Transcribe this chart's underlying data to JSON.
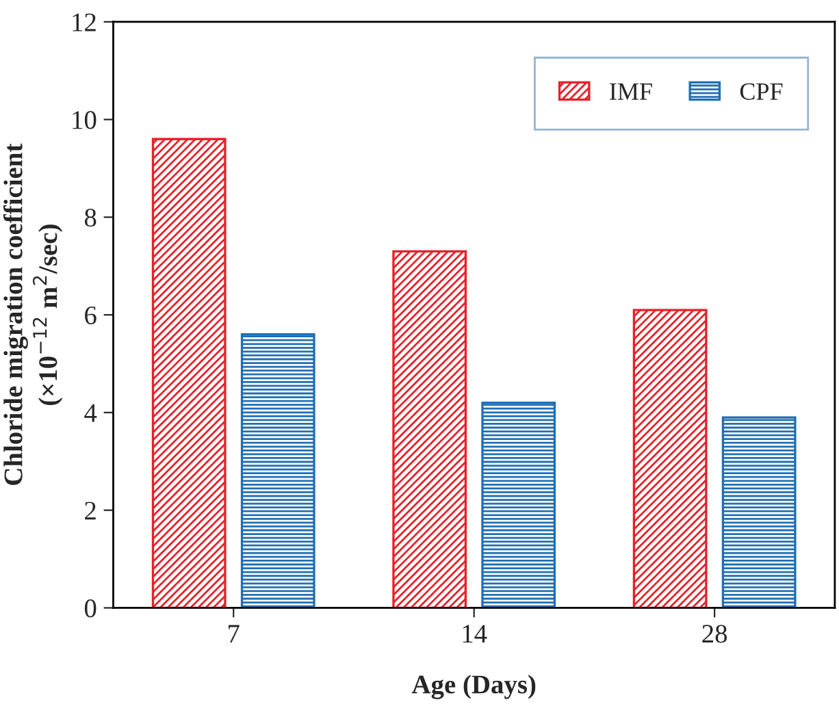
{
  "chart_data": {
    "type": "bar",
    "xlabel": "Age (Days)",
    "ylabel": "Chloride migration coefficient\n(×10$^{−12}$ m$^{2}$/sec)",
    "categories": [
      "7",
      "14",
      "28"
    ],
    "series": [
      {
        "name": "IMF",
        "color": "#e8202a",
        "values": [
          9.6,
          7.3,
          6.1
        ]
      },
      {
        "name": "CPF",
        "color": "#1f6fb5",
        "values": [
          5.6,
          4.2,
          3.9
        ]
      }
    ],
    "ylim": [
      0,
      12
    ],
    "yticks": [
      0,
      2,
      4,
      6,
      8,
      10,
      12
    ],
    "grid": false,
    "legend": "top right"
  }
}
